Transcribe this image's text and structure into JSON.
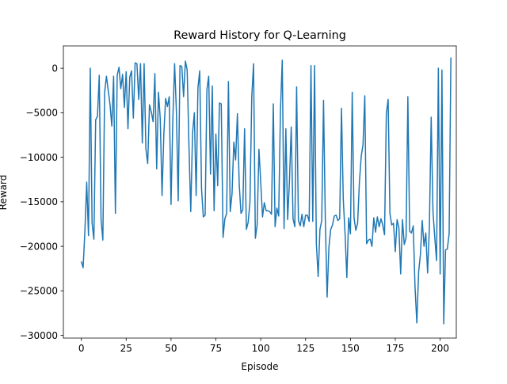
{
  "chart_data": {
    "type": "line",
    "title": "Reward History for Q-Learning",
    "xlabel": "Episode",
    "ylabel": "Reward",
    "xlim": [
      -10,
      209
    ],
    "ylim": [
      -30300,
      2500
    ],
    "xticks": [
      0,
      25,
      50,
      75,
      100,
      125,
      150,
      175,
      200
    ],
    "yticks": [
      0,
      -5000,
      -10000,
      -15000,
      -20000,
      -25000,
      -30000
    ],
    "grid": false,
    "legend": "none",
    "line_color": "#1f77b4",
    "series": [
      {
        "values": [
          -21700,
          -22400,
          -18300,
          -12800,
          -18800,
          0,
          -17400,
          -19200,
          -5800,
          -5400,
          -800,
          -17000,
          -19300,
          -2700,
          -900,
          -2500,
          -4100,
          -6500,
          -900,
          -16300,
          -800,
          100,
          -2300,
          -700,
          -4400,
          -400,
          -6800,
          -1000,
          -300,
          -5600,
          600,
          500,
          -3500,
          500,
          -8400,
          500,
          -9100,
          -10700,
          -4100,
          -4900,
          -6000,
          -600,
          -11300,
          -2700,
          -5700,
          -14300,
          -7400,
          -3400,
          -4300,
          -3200,
          -15300,
          -5800,
          500,
          -4900,
          -14900,
          300,
          200,
          -3200,
          800,
          -200,
          -8800,
          -16100,
          -7300,
          -5000,
          -14300,
          -2200,
          -300,
          -13500,
          -16700,
          -16500,
          -2400,
          -900,
          -11900,
          -2000,
          -16000,
          -7400,
          -13200,
          -3900,
          -4000,
          -19000,
          -16900,
          -16300,
          -1500,
          -16100,
          -14100,
          -8300,
          -10300,
          -5100,
          -13000,
          -16300,
          -15900,
          -6800,
          -18100,
          -17300,
          -15000,
          -3200,
          500,
          -19100,
          -17600,
          -9100,
          -12800,
          -16700,
          -15100,
          -16000,
          -16000,
          -16100,
          -16400,
          -4000,
          -17800,
          -15700,
          -16600,
          -4700,
          900,
          -18000,
          -6800,
          -17000,
          -12700,
          -6600,
          -16900,
          -17800,
          -2100,
          -17100,
          -17700,
          -16400,
          -17800,
          -16500,
          -16500,
          -17200,
          300,
          -17200,
          300,
          -19700,
          -23400,
          -18100,
          -17100,
          -3600,
          -17100,
          -25700,
          -20100,
          -18100,
          -17600,
          -16600,
          -16500,
          -17100,
          -16900,
          -4500,
          -14700,
          -18600,
          -23500,
          -16800,
          -18600,
          -2700,
          -16800,
          -18200,
          -17400,
          -12800,
          -9900,
          -8600,
          -3100,
          -19700,
          -19300,
          -19200,
          -20000,
          -16800,
          -18400,
          -16700,
          -17800,
          -16900,
          -17600,
          -18700,
          -5100,
          -3500,
          -16300,
          -17600,
          -17400,
          -20600,
          -17000,
          -17900,
          -23100,
          -17000,
          -19800,
          -19000,
          -3200,
          -18300,
          -18500,
          -17700,
          -24600,
          -28600,
          -22900,
          -20900,
          -17100,
          -20000,
          -18500,
          -23000,
          -17800,
          -5500,
          -16100,
          -19000,
          -21600,
          0,
          -23100,
          -200,
          -28700,
          -20400,
          -20300,
          -18600,
          1200
        ]
      }
    ]
  }
}
